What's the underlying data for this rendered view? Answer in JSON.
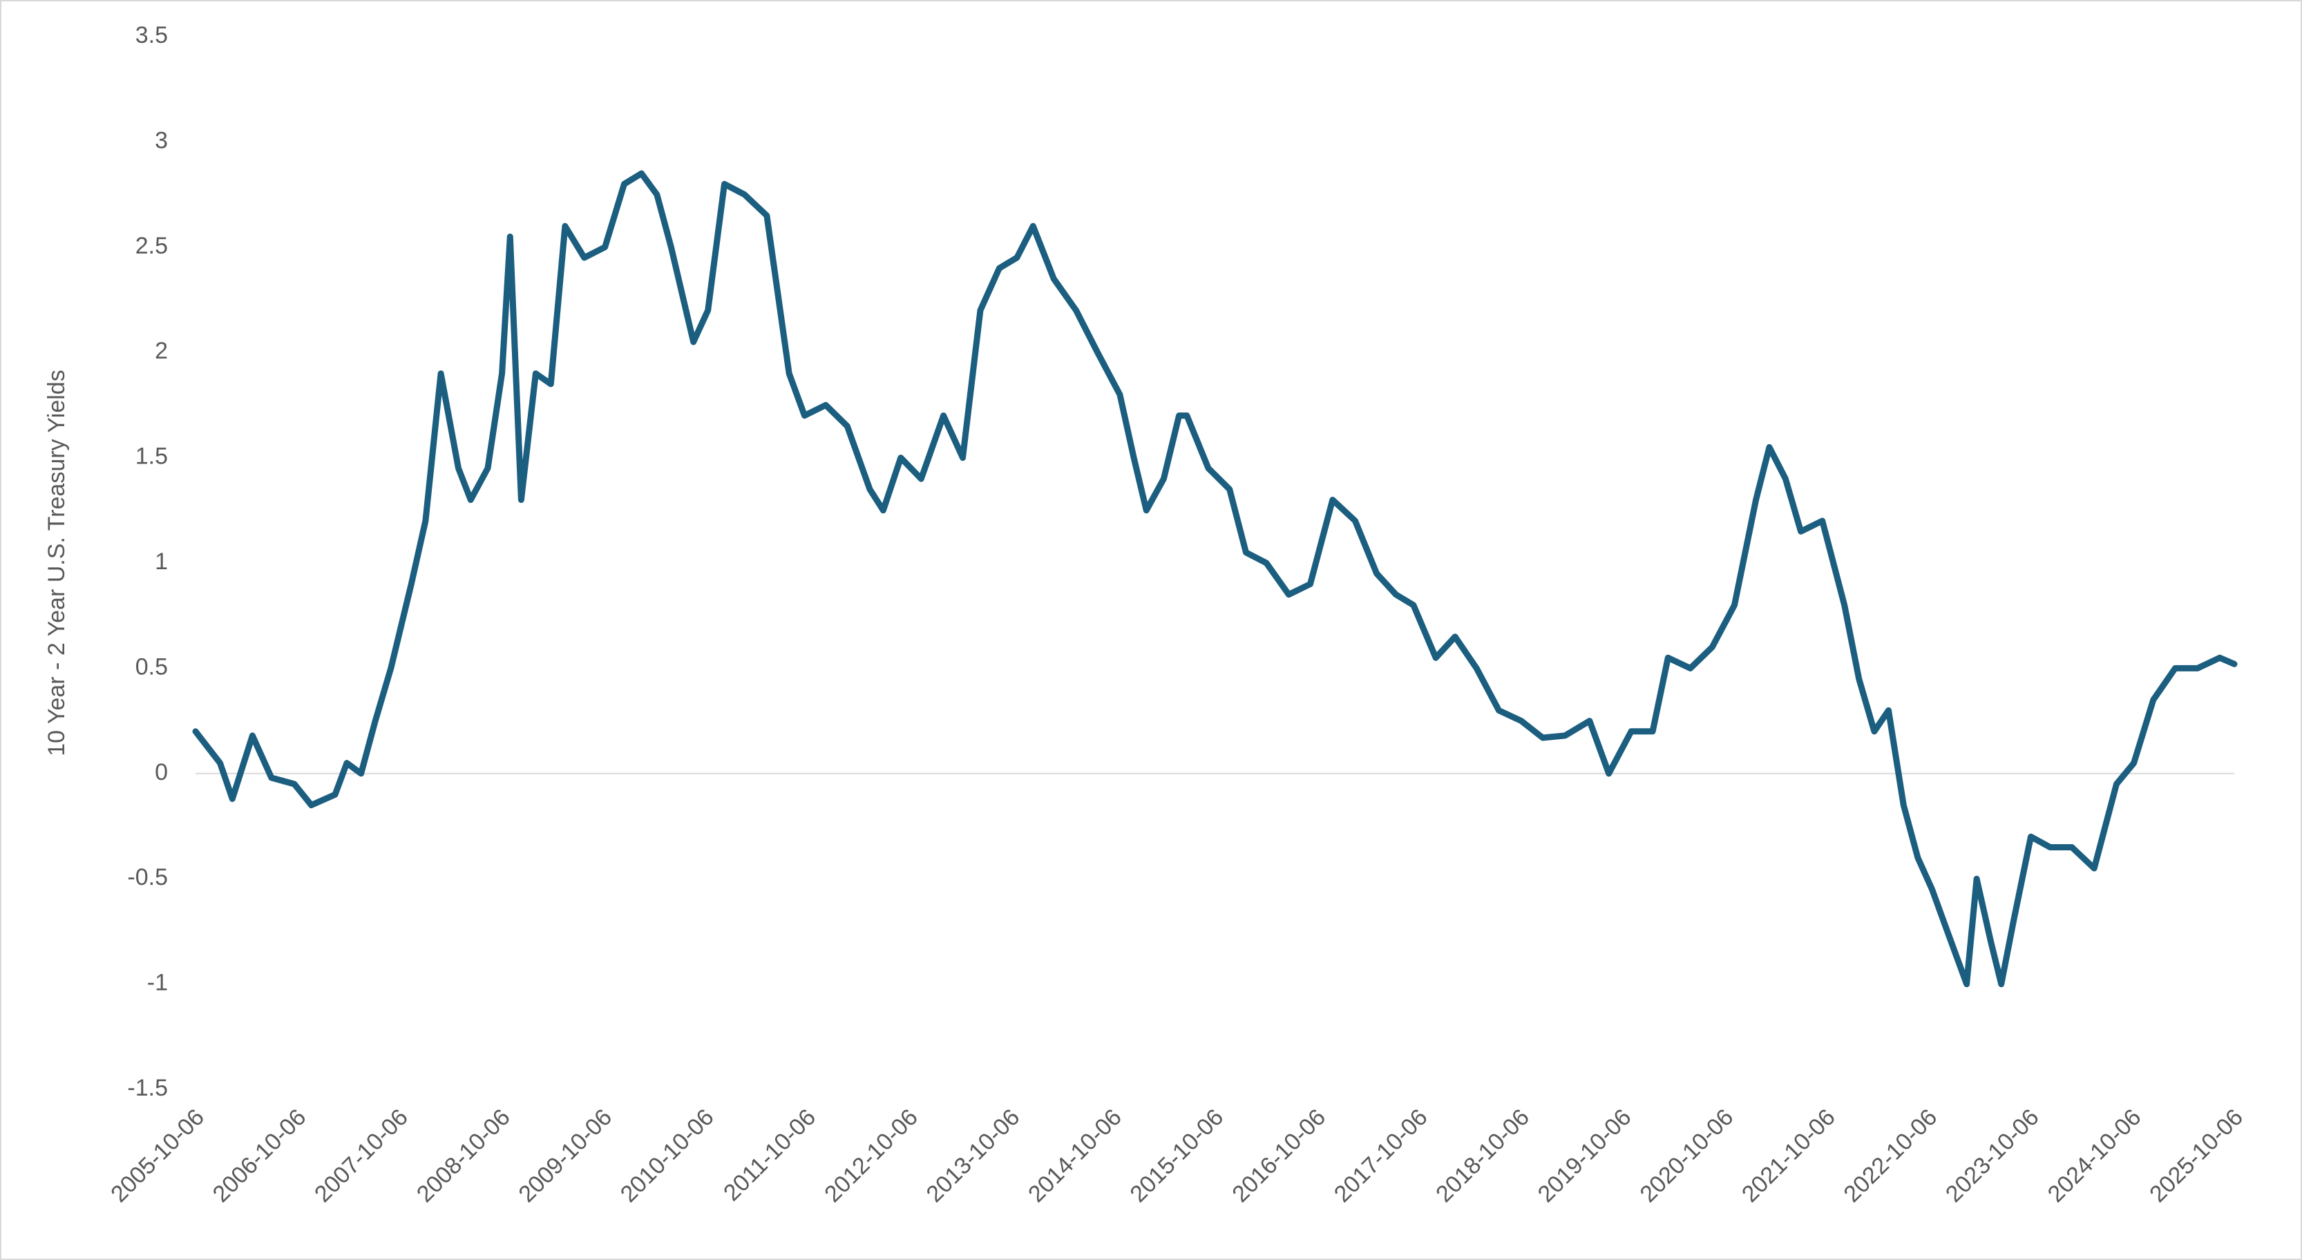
{
  "chart_data": {
    "type": "line",
    "y_label": "10 Year - 2 Year U.S. Treasury Yields",
    "color": "#1b5e7f",
    "grid": false,
    "x": [
      "2005-10-06",
      "2006-01-02",
      "2006-02-15",
      "2006-04-28",
      "2006-07-05",
      "2006-09-25",
      "2006-11-25",
      "2007-02-18",
      "2007-04-01",
      "2007-05-22",
      "2007-07-12",
      "2007-09-06",
      "2007-11-18",
      "2008-01-08",
      "2008-03-03",
      "2008-05-05",
      "2008-06-18",
      "2008-08-18",
      "2008-10-08",
      "2008-11-06",
      "2008-12-16",
      "2009-02-06",
      "2009-04-01",
      "2009-05-22",
      "2009-07-30",
      "2009-10-12",
      "2009-12-20",
      "2010-02-20",
      "2010-04-16",
      "2010-06-06",
      "2010-08-25",
      "2010-10-16",
      "2010-12-14",
      "2011-02-24",
      "2011-05-15",
      "2011-08-03",
      "2011-09-27",
      "2011-12-12",
      "2012-02-27",
      "2012-05-18",
      "2012-07-05",
      "2012-09-06",
      "2012-11-18",
      "2013-02-06",
      "2013-04-16",
      "2013-06-18",
      "2013-08-25",
      "2013-10-27",
      "2013-12-24",
      "2014-03-08",
      "2014-05-27",
      "2014-08-12",
      "2014-10-31",
      "2014-12-20",
      "2015-02-03",
      "2015-04-06",
      "2015-05-31",
      "2015-06-28",
      "2015-09-13",
      "2015-11-28",
      "2016-01-26",
      "2016-04-08",
      "2016-06-27",
      "2016-09-12",
      "2016-12-01",
      "2017-02-20",
      "2017-05-08",
      "2017-07-16",
      "2017-09-17",
      "2017-12-06",
      "2018-02-13",
      "2018-05-01",
      "2018-07-20",
      "2018-10-08",
      "2018-12-24",
      "2019-03-14",
      "2019-06-10",
      "2019-08-18",
      "2019-11-06",
      "2020-01-22",
      "2020-03-17",
      "2020-06-05",
      "2020-08-22",
      "2020-11-10",
      "2021-01-26",
      "2021-03-15",
      "2021-05-12",
      "2021-07-06",
      "2021-09-21",
      "2021-12-09",
      "2022-01-30",
      "2022-03-26",
      "2022-05-16",
      "2022-07-09",
      "2022-08-29",
      "2022-10-19",
      "2022-12-13",
      "2023-02-20",
      "2023-03-28",
      "2023-05-18",
      "2023-06-24",
      "2023-08-07",
      "2023-10-08",
      "2023-12-16",
      "2024-03-03",
      "2024-05-22",
      "2024-08-10",
      "2024-10-11",
      "2024-12-20",
      "2025-03-08",
      "2025-05-27",
      "2025-08-15",
      "2025-10-06"
    ],
    "values": [
      0.2,
      0.05,
      -0.12,
      0.18,
      -0.02,
      -0.05,
      -0.15,
      -0.1,
      0.05,
      0.0,
      0.25,
      0.5,
      0.9,
      1.2,
      1.9,
      1.45,
      1.3,
      1.45,
      1.9,
      2.55,
      1.3,
      1.9,
      1.85,
      2.6,
      2.45,
      2.5,
      2.8,
      2.85,
      2.75,
      2.5,
      2.05,
      2.2,
      2.8,
      2.75,
      2.65,
      1.9,
      1.7,
      1.75,
      1.65,
      1.35,
      1.25,
      1.5,
      1.4,
      1.7,
      1.5,
      2.2,
      2.4,
      2.45,
      2.6,
      2.35,
      2.2,
      2.0,
      1.8,
      1.5,
      1.25,
      1.4,
      1.7,
      1.7,
      1.45,
      1.35,
      1.05,
      1.0,
      0.85,
      0.9,
      1.3,
      1.2,
      0.95,
      0.85,
      0.8,
      0.55,
      0.65,
      0.5,
      0.3,
      0.25,
      0.17,
      0.18,
      0.25,
      0.0,
      0.2,
      0.2,
      0.55,
      0.5,
      0.6,
      0.8,
      1.3,
      1.55,
      1.4,
      1.15,
      1.2,
      0.8,
      0.45,
      0.2,
      0.3,
      -0.15,
      -0.4,
      -0.55,
      -0.75,
      -1.0,
      -0.5,
      -0.8,
      -1.0,
      -0.7,
      -0.3,
      -0.35,
      -0.35,
      -0.45,
      -0.05,
      0.05,
      0.35,
      0.5,
      0.5,
      0.55,
      0.52
    ],
    "xlim": [
      "2005-10-06",
      "2025-10-06"
    ],
    "xticks": [
      "2005-10-06",
      "2006-10-06",
      "2007-10-06",
      "2008-10-06",
      "2009-10-06",
      "2010-10-06",
      "2011-10-06",
      "2012-10-06",
      "2013-10-06",
      "2014-10-06",
      "2015-10-06",
      "2016-10-06",
      "2017-10-06",
      "2018-10-06",
      "2019-10-06",
      "2020-10-06",
      "2021-10-06",
      "2022-10-06",
      "2023-10-06",
      "2024-10-06",
      "2025-10-06"
    ],
    "ylim": [
      -1.5,
      3.5
    ],
    "yticks": [
      -1.5,
      -1,
      -0.5,
      0,
      0.5,
      1,
      1.5,
      2,
      2.5,
      3,
      3.5
    ]
  }
}
